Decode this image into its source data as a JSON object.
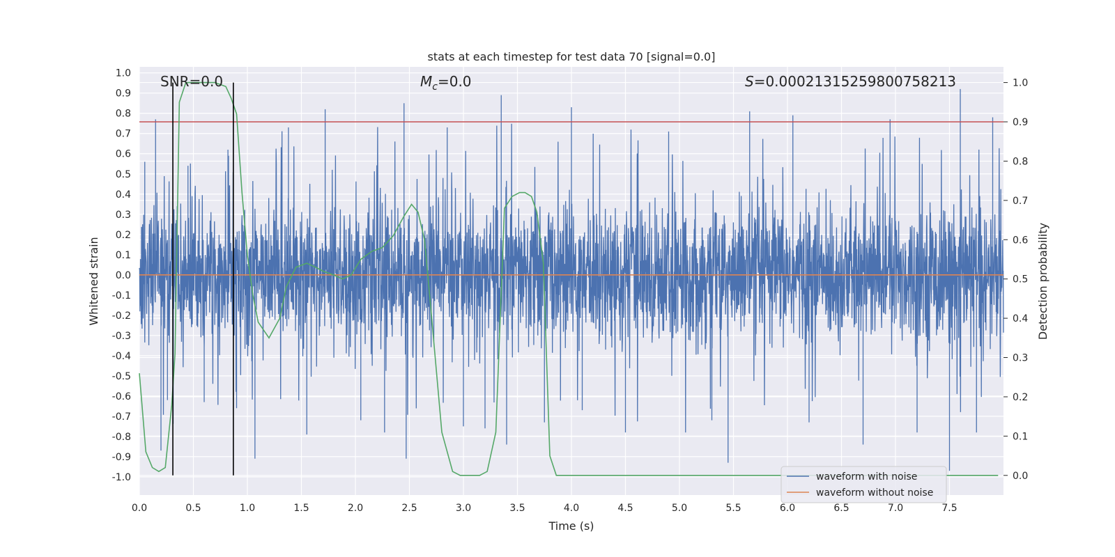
{
  "chart_data": {
    "type": "line",
    "title": "stats at each timestep for test data 70 [signal=0.0]",
    "xlabel": "Time (s)",
    "ylabel": "Whitened strain",
    "y2label": "Detection probability",
    "xlim": [
      0.0,
      8.0
    ],
    "ylim": [
      -1.09,
      1.03
    ],
    "y2lim": [
      -0.05,
      1.04
    ],
    "x_ticks": [
      "0.0",
      "0.5",
      "1.0",
      "1.5",
      "2.0",
      "2.5",
      "3.0",
      "3.5",
      "4.0",
      "4.5",
      "5.0",
      "5.5",
      "6.0",
      "6.5",
      "7.0",
      "7.5"
    ],
    "y_ticks": [
      "1.0",
      "0.9",
      "0.8",
      "0.7",
      "0.6",
      "0.5",
      "0.4",
      "0.3",
      "0.2",
      "0.1",
      "0.0",
      "-0.1",
      "-0.2",
      "-0.3",
      "-0.4",
      "-0.5",
      "-0.6",
      "-0.7",
      "-0.8",
      "-0.9",
      "-1.0"
    ],
    "y2_ticks": [
      "1.0",
      "0.9",
      "0.8",
      "0.7",
      "0.6",
      "0.5",
      "0.4",
      "0.3",
      "0.2",
      "0.1",
      "0.0"
    ],
    "grid": true,
    "legend_position": "lower-right",
    "annotations": {
      "snr": "SNR=0.0",
      "mc": "M_c=0.0",
      "s": "S=0.00021315259800758213"
    },
    "threshold_y2": 0.9,
    "markers_x": [
      0.31,
      0.87
    ],
    "series": [
      {
        "name": "waveform with noise",
        "color": "#4c72b0",
        "amplitude_peaks": [
          {
            "x": 0.05,
            "y": 0.56
          },
          {
            "x": 0.15,
            "y": 0.77
          },
          {
            "x": 0.2,
            "y": -0.87
          },
          {
            "x": 0.26,
            "y": -0.62
          },
          {
            "x": 0.45,
            "y": 0.54
          },
          {
            "x": 0.6,
            "y": -0.63
          },
          {
            "x": 0.82,
            "y": 0.62
          },
          {
            "x": 0.87,
            "y": 0.8
          },
          {
            "x": 0.9,
            "y": -0.66
          },
          {
            "x": 1.07,
            "y": -0.91
          },
          {
            "x": 1.38,
            "y": 0.73
          },
          {
            "x": 1.55,
            "y": -0.79
          },
          {
            "x": 1.72,
            "y": 0.82
          },
          {
            "x": 2.05,
            "y": -0.72
          },
          {
            "x": 2.27,
            "y": -0.78
          },
          {
            "x": 2.45,
            "y": 0.85
          },
          {
            "x": 2.47,
            "y": -0.91
          },
          {
            "x": 2.85,
            "y": 0.73
          },
          {
            "x": 3.0,
            "y": -0.75
          },
          {
            "x": 3.2,
            "y": -0.76
          },
          {
            "x": 3.35,
            "y": 0.89
          },
          {
            "x": 3.4,
            "y": -0.84
          },
          {
            "x": 3.75,
            "y": -0.73
          },
          {
            "x": 4.0,
            "y": 0.83
          },
          {
            "x": 4.1,
            "y": -0.67
          },
          {
            "x": 4.5,
            "y": -0.78
          },
          {
            "x": 4.9,
            "y": 0.71
          },
          {
            "x": 5.3,
            "y": -0.72
          },
          {
            "x": 5.45,
            "y": -0.93
          },
          {
            "x": 5.65,
            "y": 0.81
          },
          {
            "x": 6.05,
            "y": 0.79
          },
          {
            "x": 6.2,
            "y": -0.73
          },
          {
            "x": 6.7,
            "y": -0.84
          },
          {
            "x": 6.95,
            "y": 0.77
          },
          {
            "x": 7.2,
            "y": -0.78
          },
          {
            "x": 7.5,
            "y": -0.97
          },
          {
            "x": 7.6,
            "y": 0.92
          },
          {
            "x": 7.75,
            "y": -0.78
          },
          {
            "x": 7.9,
            "y": 0.78
          }
        ]
      },
      {
        "name": "waveform without noise",
        "color": "#dd8452",
        "x": [
          0.0,
          8.0
        ],
        "y": [
          0.0,
          0.0
        ]
      },
      {
        "name": "",
        "axis": "right",
        "color": "#55a868",
        "x": [
          0.0,
          0.06,
          0.12,
          0.18,
          0.24,
          0.3,
          0.33,
          0.37,
          0.43,
          0.5,
          0.6,
          0.7,
          0.8,
          0.85,
          0.9,
          0.95,
          1.0,
          1.05,
          1.1,
          1.2,
          1.3,
          1.36,
          1.45,
          1.55,
          1.63,
          1.7,
          1.8,
          1.88,
          1.96,
          2.05,
          2.15,
          2.25,
          2.35,
          2.45,
          2.52,
          2.58,
          2.64,
          2.7,
          2.8,
          2.9,
          2.97,
          3.05,
          3.15,
          3.22,
          3.3,
          3.38,
          3.45,
          3.52,
          3.57,
          3.63,
          3.68,
          3.74,
          3.8,
          3.86,
          3.93,
          4.0,
          4.5,
          5.0,
          5.5,
          6.0,
          6.5,
          7.0,
          7.5,
          7.95
        ],
        "y": [
          0.26,
          0.06,
          0.02,
          0.01,
          0.02,
          0.18,
          0.31,
          0.95,
          1.0,
          1.0,
          1.0,
          1.0,
          0.99,
          0.96,
          0.92,
          0.72,
          0.56,
          0.46,
          0.39,
          0.35,
          0.4,
          0.48,
          0.53,
          0.54,
          0.53,
          0.52,
          0.51,
          0.5,
          0.51,
          0.55,
          0.57,
          0.58,
          0.61,
          0.66,
          0.69,
          0.67,
          0.6,
          0.42,
          0.11,
          0.01,
          0.0,
          0.0,
          0.0,
          0.01,
          0.11,
          0.68,
          0.71,
          0.72,
          0.72,
          0.71,
          0.67,
          0.54,
          0.05,
          0.0,
          0.0,
          0.0,
          0.0,
          0.0,
          0.0,
          0.0,
          0.0,
          0.0,
          0.0,
          0.0
        ]
      }
    ]
  },
  "colors": {
    "plot_bg": "#eaeaf2",
    "grid": "#ffffff",
    "noise": "#4c72b0",
    "clean": "#dd8452",
    "prob": "#55a868",
    "threshold": "#c44e52",
    "marker": "#000000"
  }
}
